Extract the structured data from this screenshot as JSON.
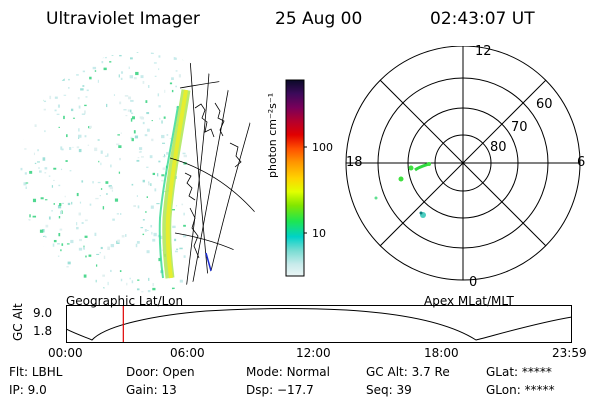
{
  "header": {
    "title": "Ultraviolet Imager",
    "date": "25 Aug 00",
    "time": "02:43:07 UT"
  },
  "colorbar": {
    "unit_label": "photon cm⁻²s⁻¹",
    "tick_labels": [
      "100",
      "10"
    ],
    "stops": [
      "#0a0a28",
      "#3c0a5a",
      "#78005a",
      "#b4002d",
      "#e10000",
      "#ff5000",
      "#ff9600",
      "#ffd200",
      "#e1ff00",
      "#82e600",
      "#1ee650",
      "#00d2c8",
      "#78dcd2",
      "#c8ebeb",
      "#ebf5f5"
    ]
  },
  "panels": {
    "left_caption": "Geographic Lat/Lon",
    "right_caption": "Apex MLat/MLT"
  },
  "polar_grid": {
    "mlt_labels": {
      "top": "12",
      "left": "18",
      "right": "6",
      "bottom": "0"
    },
    "lat_labels": [
      "60",
      "70",
      "80"
    ]
  },
  "altitude_plot": {
    "axis_label": "GC Alt",
    "y_ticks": [
      "9.0",
      "1.8"
    ],
    "x_ticks": [
      "00:00",
      "06:00",
      "12:00",
      "18:00",
      "23:59"
    ],
    "current_time_marker": "02:43",
    "marker_color": "#e00000"
  },
  "status": {
    "row1": [
      {
        "label": "Flt:",
        "value": "LBHL"
      },
      {
        "label": "Door:",
        "value": "Open"
      },
      {
        "label": "Mode:",
        "value": "Normal"
      },
      {
        "label": "GC Alt:",
        "value": "3.7 Re"
      },
      {
        "label": "GLat:",
        "value": "*****"
      }
    ],
    "row2": [
      {
        "label": "IP:",
        "value": "9.0"
      },
      {
        "label": "Gain:",
        "value": "13"
      },
      {
        "label": "Dsp:",
        "value": "−17.7"
      },
      {
        "label": "Seq:",
        "value": "39"
      },
      {
        "label": "GLon:",
        "value": "*****"
      }
    ]
  }
}
